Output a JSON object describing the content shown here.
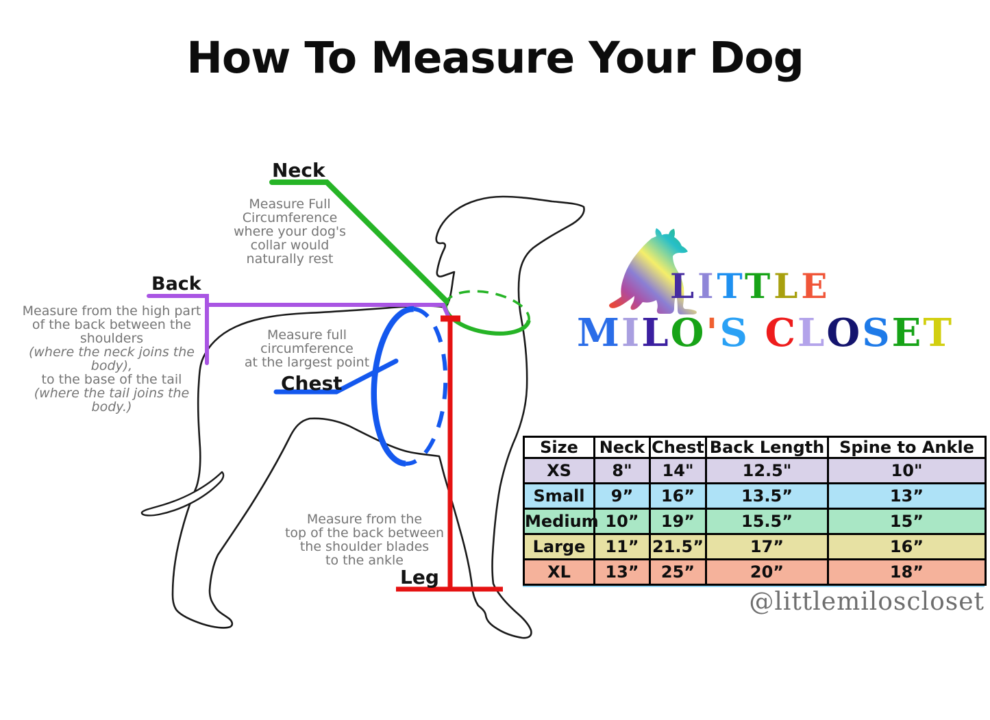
{
  "title": "How To Measure Your Dog",
  "diagram": {
    "outline_color": "#1a1a1a",
    "neck": {
      "label": "Neck",
      "color": "#26b426",
      "desc": [
        "Measure Full",
        "Circumference",
        "where your dog's",
        "collar would",
        "naturally rest"
      ]
    },
    "back": {
      "label": "Back",
      "color": "#a955e3",
      "desc": [
        {
          "t": "Measure from the high part"
        },
        {
          "t": "of the back between the"
        },
        {
          "t": "shoulders"
        },
        {
          "t": "(where the neck joins the body),",
          "i": true
        },
        {
          "t": "to the base of the tail"
        },
        {
          "t": "(where the tail joins the body.)",
          "i": true
        }
      ]
    },
    "chest": {
      "label": "Chest",
      "color": "#1458ee",
      "desc": [
        "Measure full",
        "circumference",
        "at the largest point"
      ]
    },
    "leg": {
      "label": "Leg",
      "color": "#e51212",
      "desc": [
        "Measure from the",
        "top of the back between",
        "the shoulder blades",
        "to the ankle"
      ]
    }
  },
  "logo": {
    "line1": [
      [
        "L",
        "#462da0"
      ],
      [
        "I",
        "#8f86d8"
      ],
      [
        "T",
        "#1e90f0"
      ],
      [
        "T",
        "#17a317"
      ],
      [
        "L",
        "#a8a00e"
      ],
      [
        "E",
        "#f05538"
      ]
    ],
    "line2": [
      [
        "M",
        "#2a6de8"
      ],
      [
        "I",
        "#a99fe0"
      ],
      [
        "L",
        "#3b1fa0"
      ],
      [
        "O",
        "#17a317"
      ],
      [
        "'",
        "#f06030"
      ],
      [
        "S",
        "#2aa1f5"
      ],
      [
        " ",
        "#000000"
      ],
      [
        "C",
        "#ee1c1c"
      ],
      [
        "L",
        "#b3a3ea"
      ],
      [
        "O",
        "#14146e"
      ],
      [
        "S",
        "#1e7ae8"
      ],
      [
        "E",
        "#17a317"
      ],
      [
        "T",
        "#d2cf10"
      ]
    ],
    "gradient": [
      "#29b573",
      "#27bfc9",
      "#f5ee6a",
      "#8b7fd4",
      "#b04a9e",
      "#e8483a"
    ],
    "handle": "@littlemiloscloset"
  },
  "size_chart": {
    "headers": [
      "Size",
      "Neck",
      "Chest",
      "Back Length",
      "Spine to Ankle"
    ],
    "rows": [
      {
        "size": "XS",
        "neck": "8\"",
        "chest": "14\"",
        "back_length": "12.5\"",
        "spine_to_ankle": "10\"",
        "color": "#d9d2e9"
      },
      {
        "size": "Small",
        "neck": "9”",
        "chest": "16”",
        "back_length": "13.5”",
        "spine_to_ankle": "13”",
        "color": "#aee2f7"
      },
      {
        "size": "Medium",
        "neck": "10”",
        "chest": "19”",
        "back_length": "15.5”",
        "spine_to_ankle": "15”",
        "color": "#a9e7c5"
      },
      {
        "size": "Large",
        "neck": "11”",
        "chest": "21.5”",
        "back_length": "17”",
        "spine_to_ankle": "16”",
        "color": "#e7e1a3"
      },
      {
        "size": "XL",
        "neck": "13”",
        "chest": "25”",
        "back_length": "20”",
        "spine_to_ankle": "18”",
        "color": "#f5b29b"
      }
    ]
  }
}
